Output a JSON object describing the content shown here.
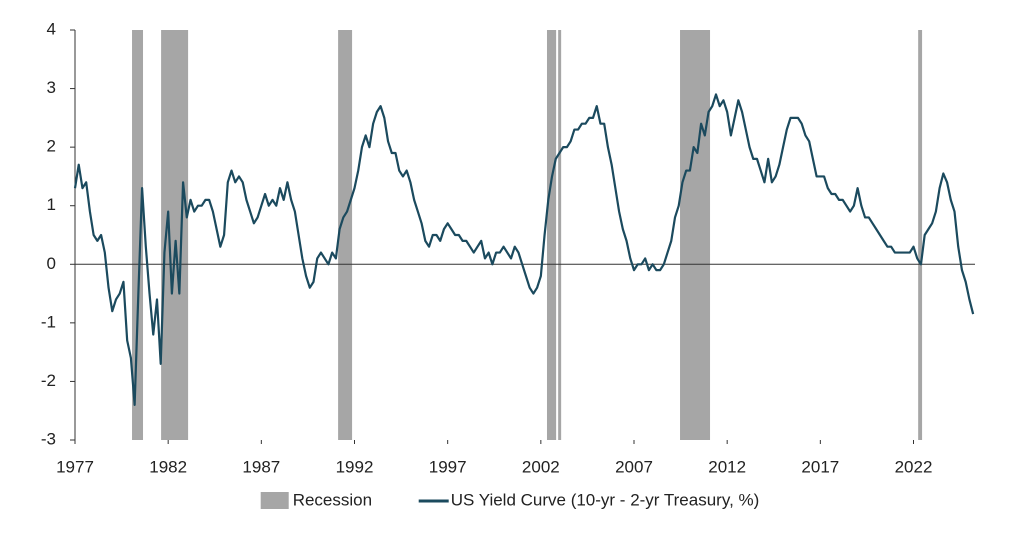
{
  "chart_data": {
    "type": "line",
    "xlim": [
      1977,
      2025.3
    ],
    "xticks": [
      1977,
      1982,
      1987,
      1992,
      1997,
      2002,
      2007,
      2012,
      2017,
      2022
    ],
    "ylim": [
      -3,
      4
    ],
    "yticks": [
      -3,
      -2,
      -1,
      0,
      1,
      2,
      3,
      4
    ],
    "bands": {
      "name": "Recession",
      "color": "#a6a6a6",
      "spans": [
        [
          1980.06,
          1980.65
        ],
        [
          1981.62,
          1983.07
        ],
        [
          1991.12,
          1991.87
        ],
        [
          2002.33,
          2002.82
        ],
        [
          2002.93,
          2003.09
        ],
        [
          2009.47,
          2011.08
        ],
        [
          2022.25,
          2022.46
        ]
      ]
    },
    "x": [
      1977,
      1977.2,
      1977.4,
      1977.6,
      1977.8,
      1978,
      1978.2,
      1978.4,
      1978.6,
      1978.8,
      1979,
      1979.2,
      1979.4,
      1979.6,
      1979.8,
      1980,
      1980.2,
      1980.4,
      1980.6,
      1980.8,
      1981,
      1981.2,
      1981.4,
      1981.6,
      1981.8,
      1982,
      1982.2,
      1982.4,
      1982.6,
      1982.8,
      1983,
      1983.2,
      1983.4,
      1983.6,
      1983.8,
      1984,
      1984.2,
      1984.4,
      1984.6,
      1984.8,
      1985,
      1985.2,
      1985.4,
      1985.6,
      1985.8,
      1986,
      1986.2,
      1986.4,
      1986.6,
      1986.8,
      1987,
      1987.2,
      1987.4,
      1987.6,
      1987.8,
      1988,
      1988.2,
      1988.4,
      1988.6,
      1988.8,
      1989,
      1989.2,
      1989.4,
      1989.6,
      1989.8,
      1990,
      1990.2,
      1990.4,
      1990.6,
      1990.8,
      1991,
      1991.2,
      1991.4,
      1991.6,
      1991.8,
      1992,
      1992.2,
      1992.4,
      1992.6,
      1992.8,
      1993,
      1993.2,
      1993.4,
      1993.6,
      1993.8,
      1994,
      1994.2,
      1994.4,
      1994.6,
      1994.8,
      1995,
      1995.2,
      1995.4,
      1995.6,
      1995.8,
      1996,
      1996.2,
      1996.4,
      1996.6,
      1996.8,
      1997,
      1997.2,
      1997.4,
      1997.6,
      1997.8,
      1998,
      1998.2,
      1998.4,
      1998.6,
      1998.8,
      1999,
      1999.2,
      1999.4,
      1999.6,
      1999.8,
      2000,
      2000.2,
      2000.4,
      2000.6,
      2000.8,
      2001,
      2001.2,
      2001.4,
      2001.6,
      2001.8,
      2002,
      2002.2,
      2002.4,
      2002.6,
      2002.8,
      2003,
      2003.2,
      2003.4,
      2003.6,
      2003.8,
      2004,
      2004.2,
      2004.4,
      2004.6,
      2004.8,
      2005,
      2005.2,
      2005.4,
      2005.6,
      2005.8,
      2006,
      2006.2,
      2006.4,
      2006.6,
      2006.8,
      2007,
      2007.2,
      2007.4,
      2007.6,
      2007.8,
      2008,
      2008.2,
      2008.4,
      2008.6,
      2008.8,
      2009,
      2009.2,
      2009.4,
      2009.6,
      2009.8,
      2010,
      2010.2,
      2010.4,
      2010.6,
      2010.8,
      2011,
      2011.2,
      2011.4,
      2011.6,
      2011.8,
      2012,
      2012.2,
      2012.4,
      2012.6,
      2012.8,
      2013,
      2013.2,
      2013.4,
      2013.6,
      2013.8,
      2014,
      2014.2,
      2014.4,
      2014.6,
      2014.8,
      2015,
      2015.2,
      2015.4,
      2015.6,
      2015.8,
      2016,
      2016.2,
      2016.4,
      2016.6,
      2016.8,
      2017,
      2017.2,
      2017.4,
      2017.6,
      2017.8,
      2018,
      2018.2,
      2018.4,
      2018.6,
      2018.8,
      2019,
      2019.2,
      2019.4,
      2019.6,
      2019.8,
      2020,
      2020.2,
      2020.4,
      2020.6,
      2020.8,
      2021,
      2021.2,
      2021.4,
      2021.6,
      2021.8,
      2022,
      2022.2,
      2022.4,
      2022.6,
      2022.8,
      2023,
      2023.2,
      2023.4,
      2023.6,
      2023.8,
      2024,
      2024.2,
      2024.4,
      2024.6,
      2024.8,
      2025,
      2025.2
    ],
    "series": [
      {
        "name": "US Yield Curve (10-yr - 2-yr Treasury, %)",
        "color": "#1b4a5e",
        "values": [
          1.3,
          1.7,
          1.3,
          1.4,
          0.9,
          0.5,
          0.4,
          0.5,
          0.2,
          -0.4,
          -0.8,
          -0.6,
          -0.5,
          -0.3,
          -1.3,
          -1.6,
          -2.4,
          -0.5,
          1.3,
          0.3,
          -0.5,
          -1.2,
          -0.6,
          -1.7,
          0.2,
          0.9,
          -0.5,
          0.4,
          -0.5,
          1.4,
          0.8,
          1.1,
          0.9,
          1.0,
          1.0,
          1.1,
          1.1,
          0.9,
          0.6,
          0.3,
          0.5,
          1.4,
          1.6,
          1.4,
          1.5,
          1.4,
          1.1,
          0.9,
          0.7,
          0.8,
          1.0,
          1.2,
          1.0,
          1.1,
          1.0,
          1.3,
          1.1,
          1.4,
          1.1,
          0.9,
          0.5,
          0.1,
          -0.2,
          -0.4,
          -0.3,
          0.1,
          0.2,
          0.1,
          0.0,
          0.2,
          0.1,
          0.6,
          0.8,
          0.9,
          1.1,
          1.3,
          1.6,
          2.0,
          2.2,
          2.0,
          2.4,
          2.6,
          2.7,
          2.5,
          2.1,
          1.9,
          1.9,
          1.6,
          1.5,
          1.6,
          1.4,
          1.1,
          0.9,
          0.7,
          0.4,
          0.3,
          0.5,
          0.5,
          0.4,
          0.6,
          0.7,
          0.6,
          0.5,
          0.5,
          0.4,
          0.4,
          0.3,
          0.2,
          0.3,
          0.4,
          0.1,
          0.2,
          0.0,
          0.2,
          0.2,
          0.3,
          0.2,
          0.1,
          0.3,
          0.2,
          0.0,
          -0.2,
          -0.4,
          -0.5,
          -0.4,
          -0.2,
          0.5,
          1.1,
          1.5,
          1.8,
          1.9,
          2.0,
          2.0,
          2.1,
          2.3,
          2.3,
          2.4,
          2.4,
          2.5,
          2.5,
          2.7,
          2.4,
          2.4,
          2.0,
          1.7,
          1.3,
          0.9,
          0.6,
          0.4,
          0.1,
          -0.1,
          0.0,
          0.0,
          0.1,
          -0.1,
          0.0,
          -0.1,
          -0.1,
          0.0,
          0.2,
          0.4,
          0.8,
          1.0,
          1.4,
          1.6,
          1.6,
          2.0,
          1.9,
          2.4,
          2.2,
          2.6,
          2.7,
          2.9,
          2.7,
          2.8,
          2.6,
          2.2,
          2.5,
          2.8,
          2.6,
          2.3,
          2.0,
          1.8,
          1.8,
          1.6,
          1.4,
          1.8,
          1.4,
          1.5,
          1.7,
          2.0,
          2.3,
          2.5,
          2.5,
          2.5,
          2.4,
          2.2,
          2.1,
          1.8,
          1.5,
          1.5,
          1.5,
          1.3,
          1.2,
          1.2,
          1.1,
          1.1,
          1.0,
          0.9,
          1.0,
          1.3,
          1.0,
          0.8,
          0.8,
          0.7,
          0.6,
          0.5,
          0.4,
          0.3,
          0.3,
          0.2,
          0.2,
          0.2,
          0.2,
          0.2,
          0.3,
          0.1,
          0.0,
          0.5,
          0.6,
          0.7,
          0.9,
          1.3,
          1.55,
          1.4,
          1.1,
          0.9,
          0.3,
          -0.1,
          -0.3,
          -0.6,
          -0.85
        ]
      }
    ]
  }
}
